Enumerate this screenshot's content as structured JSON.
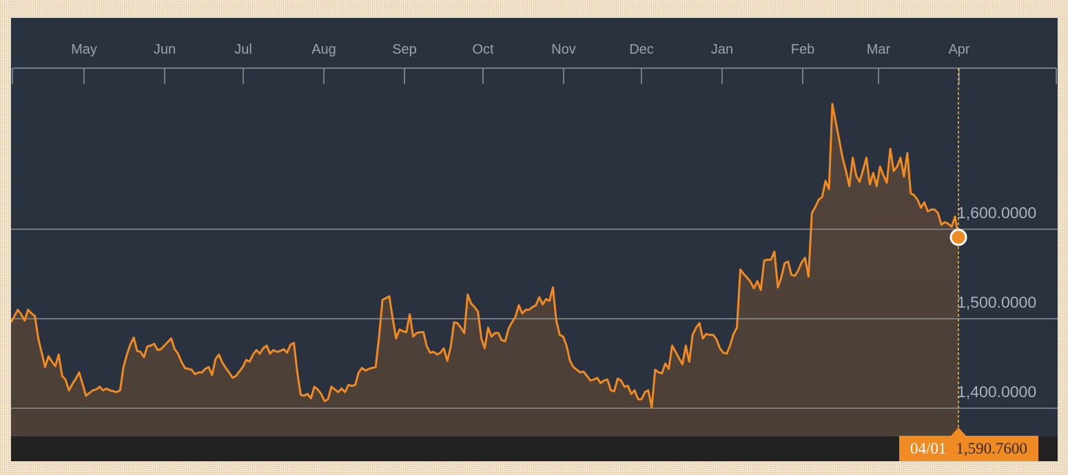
{
  "chart_data": {
    "type": "area",
    "x_axis_months": [
      "May",
      "Jun",
      "Jul",
      "Aug",
      "Sep",
      "Oct",
      "Nov",
      "Dec",
      "Jan",
      "Feb",
      "Mar",
      "Apr"
    ],
    "y_ticks": [
      {
        "value": 1400,
        "label": "1,400.0000"
      },
      {
        "value": 1500,
        "label": "1,500.0000"
      },
      {
        "value": 1600,
        "label": "1,600.0000"
      }
    ],
    "ylim": [
      1370,
      1740
    ],
    "series": [
      {
        "color": "#f08a23",
        "values": [
          1496,
          1503,
          1510,
          1505,
          1498,
          1510,
          1506,
          1503,
          1478,
          1462,
          1446,
          1458,
          1452,
          1447,
          1460,
          1436,
          1432,
          1420,
          1427,
          1433,
          1440,
          1427,
          1414,
          1417,
          1420,
          1421,
          1424,
          1420,
          1422,
          1420,
          1419,
          1418,
          1420,
          1446,
          1460,
          1471,
          1479,
          1464,
          1463,
          1457,
          1469,
          1470,
          1472,
          1465,
          1466,
          1470,
          1474,
          1478,
          1466,
          1461,
          1452,
          1445,
          1444,
          1443,
          1438,
          1440,
          1440,
          1444,
          1446,
          1437,
          1455,
          1460,
          1451,
          1445,
          1440,
          1434,
          1436,
          1441,
          1446,
          1454,
          1452,
          1460,
          1465,
          1461,
          1467,
          1470,
          1461,
          1465,
          1463,
          1464,
          1466,
          1462,
          1471,
          1473,
          1440,
          1415,
          1414,
          1416,
          1411,
          1424,
          1421,
          1416,
          1408,
          1410,
          1424,
          1421,
          1418,
          1422,
          1418,
          1426,
          1425,
          1426,
          1440,
          1445,
          1442,
          1444,
          1445,
          1446,
          1480,
          1521,
          1523,
          1525,
          1500,
          1478,
          1488,
          1486,
          1485,
          1505,
          1480,
          1484,
          1485,
          1485,
          1469,
          1462,
          1463,
          1460,
          1462,
          1467,
          1453,
          1468,
          1496,
          1495,
          1490,
          1484,
          1527,
          1517,
          1513,
          1508,
          1478,
          1467,
          1490,
          1480,
          1484,
          1484,
          1476,
          1475,
          1489,
          1496,
          1502,
          1515,
          1506,
          1510,
          1510,
          1513,
          1515,
          1524,
          1516,
          1522,
          1520,
          1535,
          1498,
          1482,
          1480,
          1470,
          1453,
          1446,
          1443,
          1440,
          1441,
          1436,
          1431,
          1432,
          1434,
          1428,
          1431,
          1432,
          1420,
          1419,
          1433,
          1431,
          1424,
          1425,
          1416,
          1420,
          1410,
          1410,
          1418,
          1420,
          1401,
          1443,
          1440,
          1439,
          1450,
          1444,
          1470,
          1463,
          1456,
          1449,
          1470,
          1452,
          1482,
          1490,
          1495,
          1478,
          1483,
          1482,
          1482,
          1477,
          1467,
          1462,
          1461,
          1470,
          1483,
          1490,
          1555,
          1550,
          1546,
          1541,
          1534,
          1542,
          1532,
          1565,
          1566,
          1566,
          1575,
          1535,
          1546,
          1562,
          1564,
          1549,
          1548,
          1554,
          1563,
          1568,
          1547,
          1618,
          1625,
          1633,
          1636,
          1654,
          1645,
          1740,
          1720,
          1700,
          1680,
          1665,
          1648,
          1680,
          1660,
          1653,
          1666,
          1680,
          1650,
          1663,
          1648,
          1670,
          1660,
          1652,
          1690,
          1665,
          1670,
          1680,
          1659,
          1685,
          1640,
          1638,
          1633,
          1624,
          1630,
          1620,
          1622,
          1622,
          1618,
          1605,
          1608,
          1606,
          1603,
          1614,
          1591
        ]
      }
    ],
    "last_point": {
      "date": "04/01",
      "value": 1590.76,
      "label": "1,590.7600"
    }
  }
}
